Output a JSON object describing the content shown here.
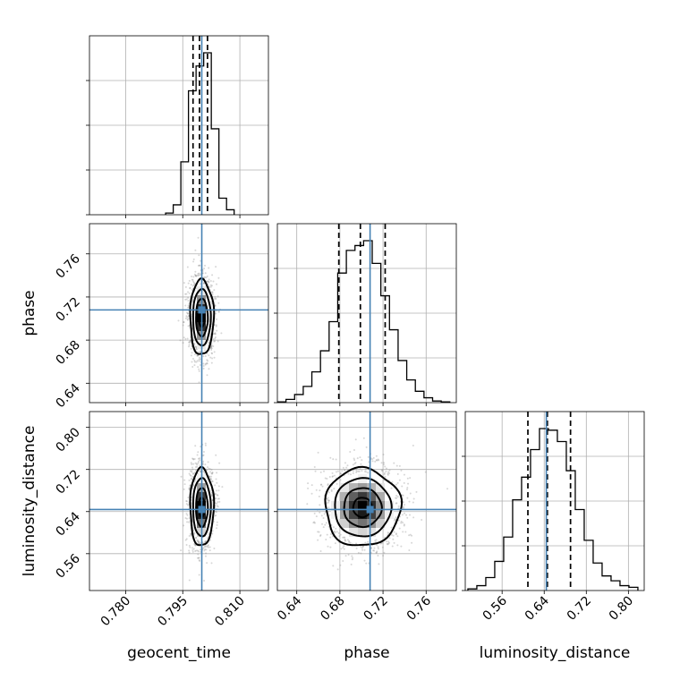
{
  "chart_data": {
    "type": "corner",
    "parameters": [
      "geocent_time",
      "phase",
      "luminosity_distance"
    ],
    "ranges": {
      "geocent_time": [
        0.7705,
        0.8175
      ],
      "phase": [
        0.622,
        0.788
      ],
      "luminosity_distance": [
        0.49,
        0.83
      ]
    },
    "ticks": {
      "geocent_time": [
        "0.780",
        "0.795",
        "0.810"
      ],
      "phase": [
        "0.64",
        "0.68",
        "0.72",
        "0.76"
      ],
      "luminosity_distance": [
        "0.56",
        "0.64",
        "0.72",
        "0.80"
      ]
    },
    "truths": {
      "geocent_time": 0.8,
      "phase": 0.708,
      "luminosity_distance": 0.644
    },
    "quantiles": {
      "geocent_time": [
        0.7977,
        0.7994,
        0.8015
      ],
      "phase": [
        0.679,
        0.699,
        0.722
      ],
      "luminosity_distance": [
        0.609,
        0.646,
        0.69
      ]
    },
    "histograms": {
      "geocent_time": {
        "edges": [
          0.7905,
          0.7925,
          0.7945,
          0.7965,
          0.7985,
          0.8005,
          0.8025,
          0.8045,
          0.8065,
          0.8085
        ],
        "counts": [
          0.01,
          0.06,
          0.32,
          0.75,
          0.9,
          0.98,
          0.52,
          0.1,
          0.03
        ]
      },
      "phase": {
        "edges": [
          0.622,
          0.63,
          0.638,
          0.646,
          0.654,
          0.662,
          0.67,
          0.678,
          0.686,
          0.694,
          0.702,
          0.71,
          0.718,
          0.726,
          0.734,
          0.742,
          0.75,
          0.758,
          0.766,
          0.774,
          0.782
        ],
        "counts": [
          0.005,
          0.02,
          0.05,
          0.1,
          0.19,
          0.32,
          0.5,
          0.8,
          0.94,
          0.97,
          1.0,
          0.86,
          0.66,
          0.45,
          0.26,
          0.14,
          0.07,
          0.03,
          0.01,
          0.005
        ]
      },
      "luminosity_distance": {
        "edges": [
          0.495,
          0.512,
          0.529,
          0.546,
          0.563,
          0.58,
          0.597,
          0.614,
          0.631,
          0.648,
          0.665,
          0.682,
          0.699,
          0.716,
          0.733,
          0.75,
          0.767,
          0.784,
          0.801,
          0.818
        ],
        "counts": [
          0.01,
          0.03,
          0.08,
          0.18,
          0.33,
          0.56,
          0.7,
          0.87,
          1.0,
          0.99,
          0.92,
          0.74,
          0.5,
          0.31,
          0.17,
          0.09,
          0.06,
          0.03,
          0.02
        ]
      }
    },
    "density_2d": [
      {
        "x": "geocent_time",
        "y": "phase",
        "center": [
          0.8,
          0.701
        ],
        "sigma": [
          0.00155,
          0.0175
        ]
      },
      {
        "x": "geocent_time",
        "y": "luminosity_distance",
        "center": [
          0.8,
          0.648
        ],
        "sigma": [
          0.00155,
          0.037
        ]
      },
      {
        "x": "phase",
        "y": "luminosity_distance",
        "center": [
          0.701,
          0.648
        ],
        "sigma": [
          0.0175,
          0.037
        ]
      }
    ],
    "contour_levels_sigma": [
      0.5,
      1.0,
      1.5,
      2.0
    ],
    "grid": true,
    "colors": {
      "truth": "#4682b4",
      "data": "#000000",
      "grid": "#b0b0b0"
    }
  }
}
